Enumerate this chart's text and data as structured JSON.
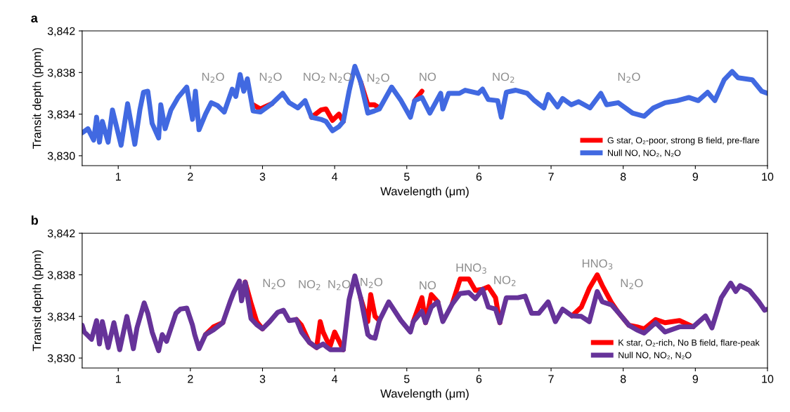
{
  "chart_data": [
    {
      "type": "line",
      "title": "a",
      "xlabel": "Wavelength (μm)",
      "ylabel": "Transit depth (ppm)",
      "x": [
        0.5,
        0.58,
        0.66,
        0.7,
        0.74,
        0.78,
        0.86,
        0.92,
        1.04,
        1.13,
        1.23,
        1.3,
        1.35,
        1.41,
        1.47,
        1.56,
        1.59,
        1.65,
        1.73,
        1.83,
        1.95,
        2.03,
        2.07,
        2.12,
        2.21,
        2.29,
        2.38,
        2.47,
        2.58,
        2.63,
        2.69,
        2.74,
        2.79,
        2.87,
        2.97,
        3.13,
        3.28,
        3.37,
        3.49,
        3.59,
        3.68,
        3.81,
        3.88,
        3.97,
        4.06,
        4.12,
        4.2,
        4.28,
        4.36,
        4.46,
        4.55,
        4.62,
        4.79,
        4.92,
        5.05,
        5.11,
        5.21,
        5.32,
        5.47,
        5.5,
        5.58,
        5.73,
        5.81,
        5.99,
        6.05,
        6.13,
        6.26,
        6.31,
        6.38,
        6.51,
        6.67,
        6.77,
        6.9,
        6.96,
        7.09,
        7.16,
        7.28,
        7.38,
        7.54,
        7.69,
        7.77,
        7.93,
        8.13,
        8.29,
        8.42,
        8.58,
        8.75,
        8.91,
        9.04,
        9.17,
        9.27,
        9.4,
        9.51,
        9.59,
        9.69,
        9.79,
        9.92,
        10.0
      ],
      "series": [
        {
          "name": "G star, O₂-poor, strong B field, pre-flare",
          "color": "#ff0000",
          "values": [
            null,
            null,
            null,
            null,
            null,
            null,
            null,
            null,
            null,
            null,
            null,
            null,
            null,
            null,
            null,
            null,
            null,
            null,
            null,
            null,
            null,
            null,
            null,
            null,
            null,
            null,
            null,
            null,
            null,
            null,
            null,
            null,
            null,
            3834.9,
            3834.5,
            3835.0,
            null,
            null,
            null,
            null,
            3833.7,
            3834.4,
            3834.5,
            3833.4,
            3834.0,
            3833.3,
            null,
            null,
            3837.1,
            3834.9,
            3834.9,
            3834.6,
            null,
            null,
            null,
            3835.3,
            3836.2,
            null,
            null,
            null,
            null,
            null,
            null,
            null,
            null,
            null,
            null,
            null,
            null,
            null,
            null,
            null,
            null,
            null,
            null,
            null,
            null,
            null,
            null,
            null,
            null,
            null,
            null,
            null,
            null,
            null,
            null,
            null,
            null,
            null,
            null,
            null,
            null,
            null,
            null,
            null,
            null,
            null
          ]
        },
        {
          "name": "Null NO, NO₂, N₂O",
          "color": "#4169e1",
          "values": [
            3832.2,
            3832.6,
            3831.5,
            3833.7,
            3831.3,
            3833.3,
            3831.3,
            3834.4,
            3831.0,
            3835.0,
            3831.1,
            3834.4,
            3836.1,
            3836.2,
            3833.1,
            3831.7,
            3834.9,
            3832.6,
            3834.4,
            3835.6,
            3836.6,
            3833.5,
            3836.2,
            3832.5,
            3834.0,
            3835.1,
            3834.8,
            3834.2,
            3836.4,
            3835.7,
            3837.8,
            3836.2,
            3837.4,
            3834.3,
            3834.2,
            3835.0,
            3836.0,
            3835.1,
            3834.6,
            3835.3,
            3833.7,
            3833.5,
            3833.3,
            3832.4,
            3832.8,
            3833.3,
            3836.2,
            3838.6,
            3837.1,
            3834.1,
            3834.3,
            3834.5,
            3836.6,
            3835.3,
            3833.7,
            3835.3,
            3835.6,
            3834.1,
            3836.0,
            3834.5,
            3836.0,
            3836.0,
            3836.3,
            3836.0,
            3836.4,
            3835.4,
            3835.3,
            3833.7,
            3836.1,
            3836.3,
            3836.0,
            3835.3,
            3834.6,
            3835.9,
            3834.7,
            3835.5,
            3834.9,
            3835.2,
            3834.6,
            3836.0,
            3834.9,
            3835.1,
            3834.1,
            3833.8,
            3834.6,
            3835.1,
            3835.3,
            3835.6,
            3835.3,
            3836.1,
            3835.3,
            3837.3,
            3838.1,
            3837.5,
            3837.4,
            3837.3,
            3836.2,
            3836.0
          ]
        }
      ],
      "xlim": [
        0.5,
        10
      ],
      "xticks": [
        1,
        2,
        3,
        4,
        5,
        6,
        7,
        8,
        9,
        10
      ],
      "ylim": [
        3829.05,
        3842
      ],
      "yticks": [
        {
          "value": 3830,
          "label": "3,830"
        },
        {
          "value": 3834,
          "label": "3,834"
        },
        {
          "value": 3838,
          "label": "3,838"
        },
        {
          "value": 3842,
          "label": "3,842"
        }
      ],
      "legend": "bottom right",
      "grid": false,
      "annotations": [
        "N$_{2}$O",
        "N$_{2}$O",
        "NO$_{2}$",
        "N$_{2}$O",
        "N$_{2}$O",
        "NO",
        "NO$_{2}$",
        "N$_{2}$O"
      ]
    },
    {
      "type": "line",
      "title": "b",
      "xlabel": "Wavelength (μm)",
      "ylabel": "Transit depth (ppm)",
      "x": [
        0.5,
        0.53,
        0.63,
        0.7,
        0.74,
        0.78,
        0.86,
        0.94,
        1.02,
        1.12,
        1.21,
        1.26,
        1.36,
        1.41,
        1.47,
        1.56,
        1.61,
        1.67,
        1.8,
        1.86,
        1.95,
        2.03,
        2.06,
        2.12,
        2.21,
        2.32,
        2.45,
        2.55,
        2.6,
        2.68,
        2.71,
        2.76,
        2.84,
        2.92,
        3.0,
        3.1,
        3.21,
        3.29,
        3.37,
        3.47,
        3.54,
        3.65,
        3.75,
        3.8,
        3.84,
        3.9,
        3.94,
        4.0,
        4.12,
        4.2,
        4.28,
        4.36,
        4.46,
        4.5,
        4.56,
        4.62,
        4.75,
        4.92,
        5.05,
        5.09,
        5.21,
        5.26,
        5.34,
        5.43,
        5.5,
        5.63,
        5.74,
        5.86,
        5.95,
        6.05,
        6.13,
        6.23,
        6.29,
        6.38,
        6.54,
        6.64,
        6.73,
        6.83,
        6.96,
        7.06,
        7.16,
        7.29,
        7.42,
        7.53,
        7.64,
        7.71,
        7.84,
        7.93,
        8.08,
        8.19,
        8.29,
        8.45,
        8.58,
        8.78,
        8.97,
        9.14,
        9.23,
        9.36,
        9.49,
        9.56,
        9.62,
        9.75,
        9.88,
        9.96,
        10.0
      ],
      "series": [
        {
          "name": "K star, O₂-rich, No B field, flare-peak",
          "color": "#ff0000",
          "values": [
            null,
            null,
            null,
            null,
            null,
            null,
            null,
            null,
            null,
            null,
            null,
            null,
            null,
            null,
            null,
            null,
            null,
            null,
            null,
            null,
            null,
            null,
            null,
            null,
            3832.25,
            3833.0,
            3833.4,
            null,
            null,
            null,
            null,
            3837.3,
            3835.3,
            3833.5,
            3832.8,
            null,
            null,
            null,
            null,
            3833.7,
            3833.15,
            3831.5,
            3831.0,
            3833.5,
            3832.5,
            3831.6,
            3831.2,
            3832.5,
            3830.8,
            null,
            null,
            3835.8,
            3833.5,
            3836.1,
            3834.0,
            3833.6,
            null,
            null,
            null,
            3833.5,
            3835.8,
            3833.4,
            3836.1,
            3835.4,
            null,
            3835.2,
            3837.6,
            3837.6,
            3836.5,
            3836.6,
            3836.85,
            3835.8,
            3833.4,
            null,
            null,
            null,
            null,
            null,
            null,
            null,
            null,
            3834.05,
            3834.9,
            3836.7,
            3838.0,
            3836.97,
            3835.3,
            3834.4,
            3833.15,
            3833.0,
            3832.8,
            3833.7,
            3833.4,
            3833.6,
            3833.0,
            null,
            null,
            null,
            null,
            null,
            null,
            null,
            null,
            null,
            null
          ]
        },
        {
          "name": "Null NO, NO₂, N₂O",
          "color": "#663399",
          "values": [
            3833.15,
            3832.5,
            3831.8,
            3833.6,
            3831.35,
            3833.5,
            3831.0,
            3833.4,
            3830.8,
            3834.0,
            3830.9,
            3832.9,
            3835.3,
            3834.3,
            3832.5,
            3830.7,
            3832.25,
            3831.6,
            3834.3,
            3834.7,
            3834.8,
            3833.15,
            3832.25,
            3830.9,
            3832.25,
            3832.7,
            3833.4,
            3835.4,
            3836.3,
            3837.4,
            3835.5,
            3837.3,
            3833.8,
            3833.2,
            3832.8,
            3833.5,
            3834.4,
            3834.6,
            3833.6,
            3833.7,
            3832.5,
            3831.5,
            3831.0,
            3831.2,
            3831.35,
            3831.0,
            3830.8,
            3830.8,
            3830.8,
            3835.6,
            3837.9,
            3835.8,
            3832.25,
            3832.0,
            3831.9,
            3833.6,
            3835.4,
            3833.6,
            3832.5,
            3833.5,
            3834.5,
            3833.4,
            3834.9,
            3835.4,
            3833.5,
            3835.2,
            3836.2,
            3836.3,
            3835.7,
            3836.6,
            3834.9,
            3834.7,
            3833.4,
            3835.8,
            3835.8,
            3835.96,
            3834.3,
            3834.3,
            3835.4,
            3833.5,
            3834.7,
            3834.05,
            3834.0,
            3833.5,
            3836.4,
            3835.4,
            3835.1,
            3834.4,
            3833.15,
            3832.7,
            3832.4,
            3833.4,
            3832.5,
            3833.0,
            3833.0,
            3834.05,
            3832.9,
            3835.8,
            3837.2,
            3836.4,
            3836.97,
            3836.5,
            3835.4,
            3834.6,
            3834.7
          ]
        }
      ],
      "xlim": [
        0.5,
        10
      ],
      "xticks": [
        1,
        2,
        3,
        4,
        5,
        6,
        7,
        8,
        9,
        10
      ],
      "ylim": [
        3829.05,
        3842
      ],
      "yticks": [
        {
          "value": 3830,
          "label": "3,830"
        },
        {
          "value": 3834,
          "label": "3,834"
        },
        {
          "value": 3838,
          "label": "3,838"
        },
        {
          "value": 3842,
          "label": "3,842"
        }
      ],
      "legend": "bottom right",
      "grid": false,
      "annotations": [
        "N$_{2}$O",
        "NO$_{2}$",
        "N$_{2}$O",
        "N$_{2}$O",
        "NO",
        "HNO$_{3}$",
        "NO$_{2}$",
        "HNO$_{3}$",
        "N$_{2}$O"
      ]
    }
  ]
}
